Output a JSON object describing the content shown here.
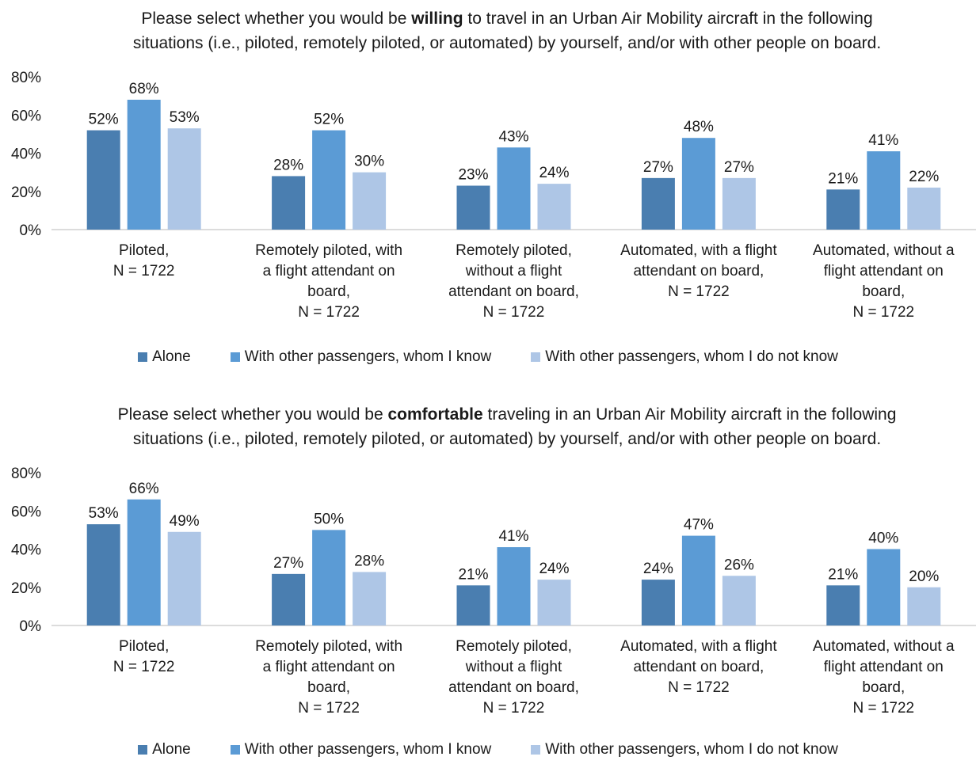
{
  "colors": {
    "alone": "#4a7eb0",
    "known": "#5b9bd5",
    "unknown": "#aec6e6",
    "axis": "#d0d0d0"
  },
  "chart_data": [
    {
      "type": "bar",
      "title_pre": "Please select whether you would be ",
      "title_bold": "willing",
      "title_post": " to travel in an Urban Air Mobility aircraft in the following situations (i.e., piloted, remotely piloted, or automated) by yourself, and/or with other people on board.",
      "categories": [
        [
          "Piloted,",
          "N = 1722"
        ],
        [
          "Remotely piloted, with",
          "a flight attendant on",
          "board,",
          "N = 1722"
        ],
        [
          "Remotely piloted,",
          "without a flight",
          "attendant on board,",
          "N = 1722"
        ],
        [
          "Automated, with a flight",
          "attendant on board,",
          "N = 1722"
        ],
        [
          "Automated, without a",
          "flight attendant on",
          "board,",
          "N = 1722"
        ]
      ],
      "series": [
        {
          "name": "Alone",
          "values": [
            52,
            28,
            23,
            27,
            21
          ]
        },
        {
          "name": "With other passengers, whom I know",
          "values": [
            68,
            52,
            43,
            48,
            41
          ]
        },
        {
          "name": "With other passengers, whom I do not know",
          "values": [
            53,
            30,
            24,
            27,
            22
          ]
        }
      ],
      "ylim": [
        0,
        80
      ],
      "yticks": [
        "0%",
        "20%",
        "40%",
        "60%",
        "80%"
      ],
      "value_suffix": "%",
      "legend": "bottom",
      "grid": false
    },
    {
      "type": "bar",
      "title_pre": "Please select whether you would be ",
      "title_bold": "comfortable",
      "title_post": " traveling in an Urban Air Mobility aircraft in the following situations (i.e., piloted, remotely piloted, or automated) by yourself, and/or with other people on board.",
      "categories": [
        [
          "Piloted,",
          "N = 1722"
        ],
        [
          "Remotely piloted, with",
          "a flight attendant on",
          "board,",
          "N = 1722"
        ],
        [
          "Remotely piloted,",
          "without a flight",
          "attendant on board,",
          "N = 1722"
        ],
        [
          "Automated, with a flight",
          "attendant on board,",
          "N = 1722"
        ],
        [
          "Automated, without a",
          "flight attendant on",
          "board,",
          "N = 1722"
        ]
      ],
      "series": [
        {
          "name": "Alone",
          "values": [
            53,
            27,
            21,
            24,
            21
          ]
        },
        {
          "name": "With other passengers, whom I know",
          "values": [
            66,
            50,
            41,
            47,
            40
          ]
        },
        {
          "name": "With other passengers, whom I do not know",
          "values": [
            49,
            28,
            24,
            26,
            20
          ]
        }
      ],
      "ylim": [
        0,
        80
      ],
      "yticks": [
        "0%",
        "20%",
        "40%",
        "60%",
        "80%"
      ],
      "value_suffix": "%",
      "legend": "bottom",
      "grid": false
    }
  ]
}
